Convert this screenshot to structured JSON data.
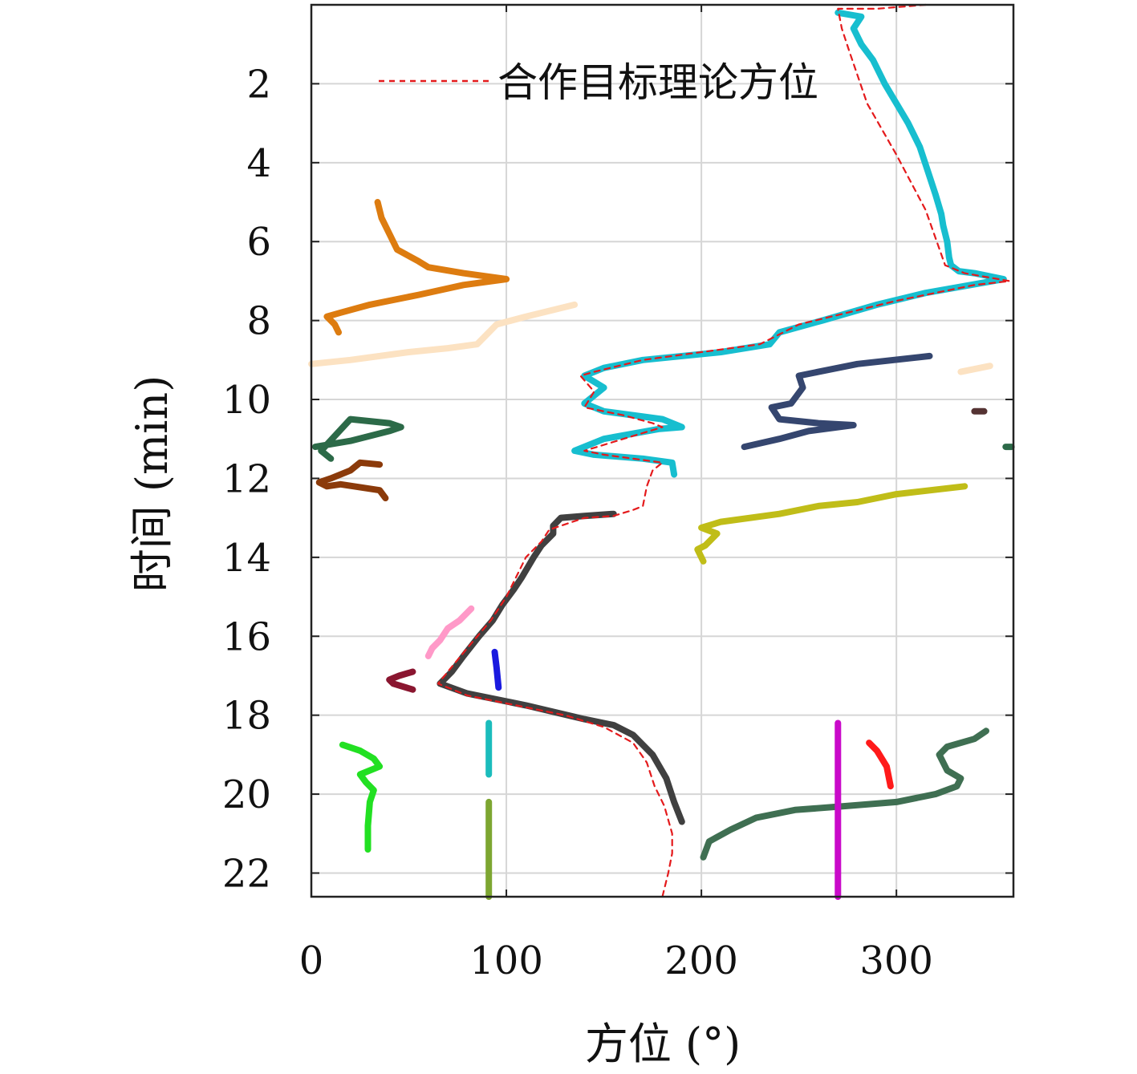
{
  "chart_data": {
    "type": "scatter",
    "xlabel": "方位 (°)",
    "ylabel": "时间 (min)",
    "xlim": [
      0,
      360
    ],
    "ylim": [
      0,
      22.6
    ],
    "y_reversed": true,
    "grid": true,
    "x_ticks": [
      0,
      100,
      200,
      300
    ],
    "y_ticks": [
      2,
      4,
      6,
      8,
      10,
      12,
      14,
      16,
      18,
      20,
      22
    ],
    "legend": {
      "placement": "top",
      "entries": [
        {
          "label": "合作目标理论方位",
          "color": "#e41a1c",
          "style": "dashed"
        }
      ]
    },
    "series": [
      {
        "name": "合作目标理论方位",
        "role": "reference",
        "color": "#e41a1c",
        "style": "dashed",
        "points": [
          [
            315,
            0.0
          ],
          [
            290,
            0.1
          ],
          [
            270,
            0.1
          ],
          [
            272,
            0.6
          ],
          [
            276,
            1.2
          ],
          [
            285,
            2.5
          ],
          [
            300,
            3.8
          ],
          [
            315,
            5.2
          ],
          [
            325,
            6.6
          ],
          [
            335,
            6.8
          ],
          [
            358,
            7.0
          ],
          [
            340,
            7.1
          ],
          [
            300,
            7.5
          ],
          [
            250,
            8.1
          ],
          [
            230,
            8.6
          ],
          [
            170,
            9.0
          ],
          [
            145,
            9.3
          ],
          [
            138,
            9.4
          ],
          [
            145,
            9.8
          ],
          [
            140,
            10.2
          ],
          [
            160,
            10.4
          ],
          [
            175,
            10.6
          ],
          [
            180,
            10.7
          ],
          [
            160,
            11.0
          ],
          [
            140,
            11.3
          ],
          [
            150,
            11.4
          ],
          [
            180,
            11.6
          ],
          [
            175,
            11.8
          ],
          [
            172,
            12.2
          ],
          [
            170,
            12.7
          ],
          [
            165,
            12.8
          ],
          [
            155,
            12.95
          ],
          [
            140,
            13.0
          ],
          [
            122,
            13.3
          ],
          [
            118,
            13.6
          ],
          [
            110,
            14.0
          ],
          [
            105,
            14.5
          ],
          [
            100,
            15.0
          ],
          [
            92,
            15.6
          ],
          [
            80,
            16.3
          ],
          [
            70,
            16.9
          ],
          [
            65,
            17.2
          ],
          [
            80,
            17.5
          ],
          [
            100,
            17.7
          ],
          [
            130,
            18.0
          ],
          [
            150,
            18.3
          ],
          [
            165,
            18.7
          ],
          [
            172,
            19.2
          ],
          [
            176,
            19.8
          ],
          [
            181,
            20.3
          ],
          [
            185,
            21.0
          ],
          [
            185,
            21.5
          ],
          [
            183,
            22.0
          ],
          [
            180,
            22.6
          ]
        ]
      },
      {
        "name": "",
        "color": "#17becf",
        "points": [
          [
            270,
            0.2
          ],
          [
            282,
            0.3
          ],
          [
            278,
            0.6
          ],
          [
            282,
            1.0
          ],
          [
            288,
            1.4
          ],
          [
            294,
            2.0
          ],
          [
            300,
            2.5
          ],
          [
            306,
            3.0
          ],
          [
            312,
            3.6
          ],
          [
            316,
            4.2
          ],
          [
            320,
            4.8
          ],
          [
            323,
            5.3
          ],
          [
            324,
            5.6
          ],
          [
            326,
            6.0
          ],
          [
            327,
            6.4
          ],
          [
            328,
            6.6
          ],
          [
            332,
            6.75
          ],
          [
            340,
            6.8
          ],
          [
            355,
            6.95
          ],
          [
            338,
            7.1
          ],
          [
            315,
            7.3
          ],
          [
            290,
            7.6
          ],
          [
            262,
            8.0
          ],
          [
            240,
            8.3
          ],
          [
            235,
            8.6
          ],
          [
            210,
            8.8
          ],
          [
            170,
            9.0
          ],
          [
            150,
            9.2
          ],
          [
            140,
            9.4
          ],
          [
            150,
            9.7
          ],
          [
            140,
            10.1
          ],
          [
            150,
            10.3
          ],
          [
            180,
            10.5
          ],
          [
            190,
            10.7
          ],
          [
            178,
            10.75
          ],
          [
            150,
            11.0
          ],
          [
            135,
            11.3
          ],
          [
            145,
            11.4
          ],
          [
            170,
            11.5
          ],
          [
            185,
            11.6
          ],
          [
            186,
            11.9
          ]
        ]
      },
      {
        "name": "",
        "color": "#404040",
        "points": [
          [
            155,
            12.9
          ],
          [
            140,
            12.95
          ],
          [
            128,
            13.0
          ],
          [
            124,
            13.2
          ],
          [
            124,
            13.4
          ],
          [
            118,
            13.7
          ],
          [
            114,
            14.0
          ],
          [
            108,
            14.5
          ],
          [
            104,
            14.8
          ],
          [
            98,
            15.2
          ],
          [
            93,
            15.6
          ],
          [
            86,
            16.0
          ],
          [
            78,
            16.5
          ],
          [
            72,
            16.9
          ],
          [
            66,
            17.2
          ],
          [
            80,
            17.45
          ],
          [
            110,
            17.75
          ],
          [
            140,
            18.1
          ],
          [
            155,
            18.25
          ],
          [
            165,
            18.5
          ],
          [
            175,
            19.0
          ],
          [
            182,
            19.6
          ],
          [
            186,
            20.2
          ],
          [
            190,
            20.7
          ]
        ]
      },
      {
        "name": "",
        "color": "#dd7c10",
        "points": [
          [
            34,
            5.0
          ],
          [
            36,
            5.4
          ],
          [
            40,
            5.8
          ],
          [
            44,
            6.2
          ],
          [
            55,
            6.5
          ],
          [
            60,
            6.65
          ],
          [
            78,
            6.8
          ],
          [
            100,
            6.95
          ],
          [
            78,
            7.1
          ],
          [
            55,
            7.35
          ],
          [
            30,
            7.6
          ],
          [
            15,
            7.8
          ],
          [
            8,
            7.9
          ],
          [
            12,
            8.1
          ],
          [
            14,
            8.3
          ]
        ]
      },
      {
        "name": "",
        "color": "#fce2c2",
        "points": [
          [
            0,
            9.1
          ],
          [
            20,
            9.0
          ],
          [
            50,
            8.8
          ],
          [
            70,
            8.7
          ],
          [
            85,
            8.6
          ],
          [
            90,
            8.35
          ],
          [
            95,
            8.1
          ],
          [
            110,
            7.9
          ],
          [
            135,
            7.6
          ]
        ]
      },
      {
        "name": "",
        "color": "#fce2c2",
        "points": [
          [
            333,
            9.3
          ],
          [
            348,
            9.15
          ]
        ]
      },
      {
        "name": "",
        "color": "#35466f",
        "points": [
          [
            317,
            8.9
          ],
          [
            280,
            9.1
          ],
          [
            260,
            9.3
          ],
          [
            250,
            9.4
          ],
          [
            252,
            9.7
          ],
          [
            246,
            10.1
          ],
          [
            236,
            10.2
          ],
          [
            240,
            10.5
          ],
          [
            260,
            10.6
          ],
          [
            278,
            10.65
          ],
          [
            255,
            10.8
          ],
          [
            240,
            11.0
          ],
          [
            222,
            11.2
          ]
        ]
      },
      {
        "name": "",
        "color": "#c0bd18",
        "points": [
          [
            335,
            12.2
          ],
          [
            300,
            12.4
          ],
          [
            280,
            12.6
          ],
          [
            260,
            12.7
          ],
          [
            240,
            12.9
          ],
          [
            210,
            13.1
          ],
          [
            200,
            13.25
          ],
          [
            208,
            13.4
          ],
          [
            202,
            13.7
          ],
          [
            198,
            13.8
          ],
          [
            201,
            14.1
          ]
        ]
      },
      {
        "name": "",
        "color": "#2c6a48",
        "points": [
          [
            2,
            11.2
          ],
          [
            20,
            11.05
          ],
          [
            40,
            10.8
          ],
          [
            46,
            10.7
          ],
          [
            40,
            10.6
          ],
          [
            20,
            10.5
          ],
          [
            5,
            11.3
          ],
          [
            10,
            11.5
          ]
        ]
      },
      {
        "name": "",
        "color": "#8b3a0a",
        "points": [
          [
            35,
            11.65
          ],
          [
            25,
            11.6
          ],
          [
            20,
            11.8
          ],
          [
            10,
            12.0
          ],
          [
            4,
            12.1
          ],
          [
            8,
            12.2
          ],
          [
            15,
            12.15
          ],
          [
            35,
            12.3
          ],
          [
            38,
            12.5
          ]
        ]
      },
      {
        "name": "",
        "color": "#ff99c8",
        "points": [
          [
            82,
            15.3
          ],
          [
            76,
            15.6
          ],
          [
            70,
            15.8
          ],
          [
            66,
            16.1
          ],
          [
            62,
            16.3
          ],
          [
            60,
            16.5
          ]
        ]
      },
      {
        "name": "",
        "color": "#8a1630",
        "points": [
          [
            52,
            16.9
          ],
          [
            45,
            17.0
          ],
          [
            40,
            17.1
          ],
          [
            42,
            17.2
          ],
          [
            52,
            17.35
          ]
        ]
      },
      {
        "name": "",
        "color": "#1a1adf",
        "points": [
          [
            94,
            16.4
          ],
          [
            95,
            16.8
          ],
          [
            96,
            17.3
          ]
        ]
      },
      {
        "name": "",
        "color": "#3f6f52",
        "points": [
          [
            201,
            21.6
          ],
          [
            204,
            21.2
          ],
          [
            215,
            20.9
          ],
          [
            228,
            20.6
          ],
          [
            248,
            20.4
          ],
          [
            275,
            20.3
          ],
          [
            300,
            20.2
          ],
          [
            320,
            20.0
          ],
          [
            331,
            19.8
          ],
          [
            333,
            19.6
          ],
          [
            326,
            19.4
          ],
          [
            322,
            19.0
          ],
          [
            326,
            18.8
          ],
          [
            340,
            18.6
          ],
          [
            346,
            18.4
          ]
        ]
      },
      {
        "name": "",
        "color": "#c90ac9",
        "points": [
          [
            270,
            18.2
          ],
          [
            270,
            19.5
          ],
          [
            270,
            20.5
          ],
          [
            270,
            21.5
          ],
          [
            270,
            22.6
          ]
        ]
      },
      {
        "name": "",
        "color": "#ff1a1a",
        "points": [
          [
            286,
            18.7
          ],
          [
            290,
            18.9
          ],
          [
            295,
            19.3
          ],
          [
            297,
            19.8
          ]
        ]
      },
      {
        "name": "",
        "color": "#22e022",
        "points": [
          [
            16,
            18.75
          ],
          [
            25,
            18.9
          ],
          [
            32,
            19.1
          ],
          [
            35,
            19.3
          ],
          [
            25,
            19.5
          ],
          [
            28,
            19.7
          ],
          [
            32,
            19.9
          ],
          [
            30,
            20.2
          ],
          [
            29,
            20.8
          ],
          [
            29,
            21.4
          ]
        ]
      },
      {
        "name": "",
        "color": "#1bbcbc",
        "points": [
          [
            91,
            18.2
          ],
          [
            91,
            18.8
          ],
          [
            91,
            19.5
          ]
        ]
      },
      {
        "name": "",
        "color": "#7da631",
        "points": [
          [
            91,
            20.2
          ],
          [
            91,
            21.0
          ],
          [
            91,
            22.0
          ],
          [
            91,
            22.6
          ]
        ]
      },
      {
        "name": "",
        "color": "#553333",
        "points": [
          [
            340,
            10.3
          ],
          [
            345,
            10.3
          ]
        ]
      },
      {
        "name": "",
        "color": "#2c6a48",
        "points": [
          [
            356,
            11.2
          ],
          [
            359,
            11.2
          ]
        ]
      }
    ]
  }
}
